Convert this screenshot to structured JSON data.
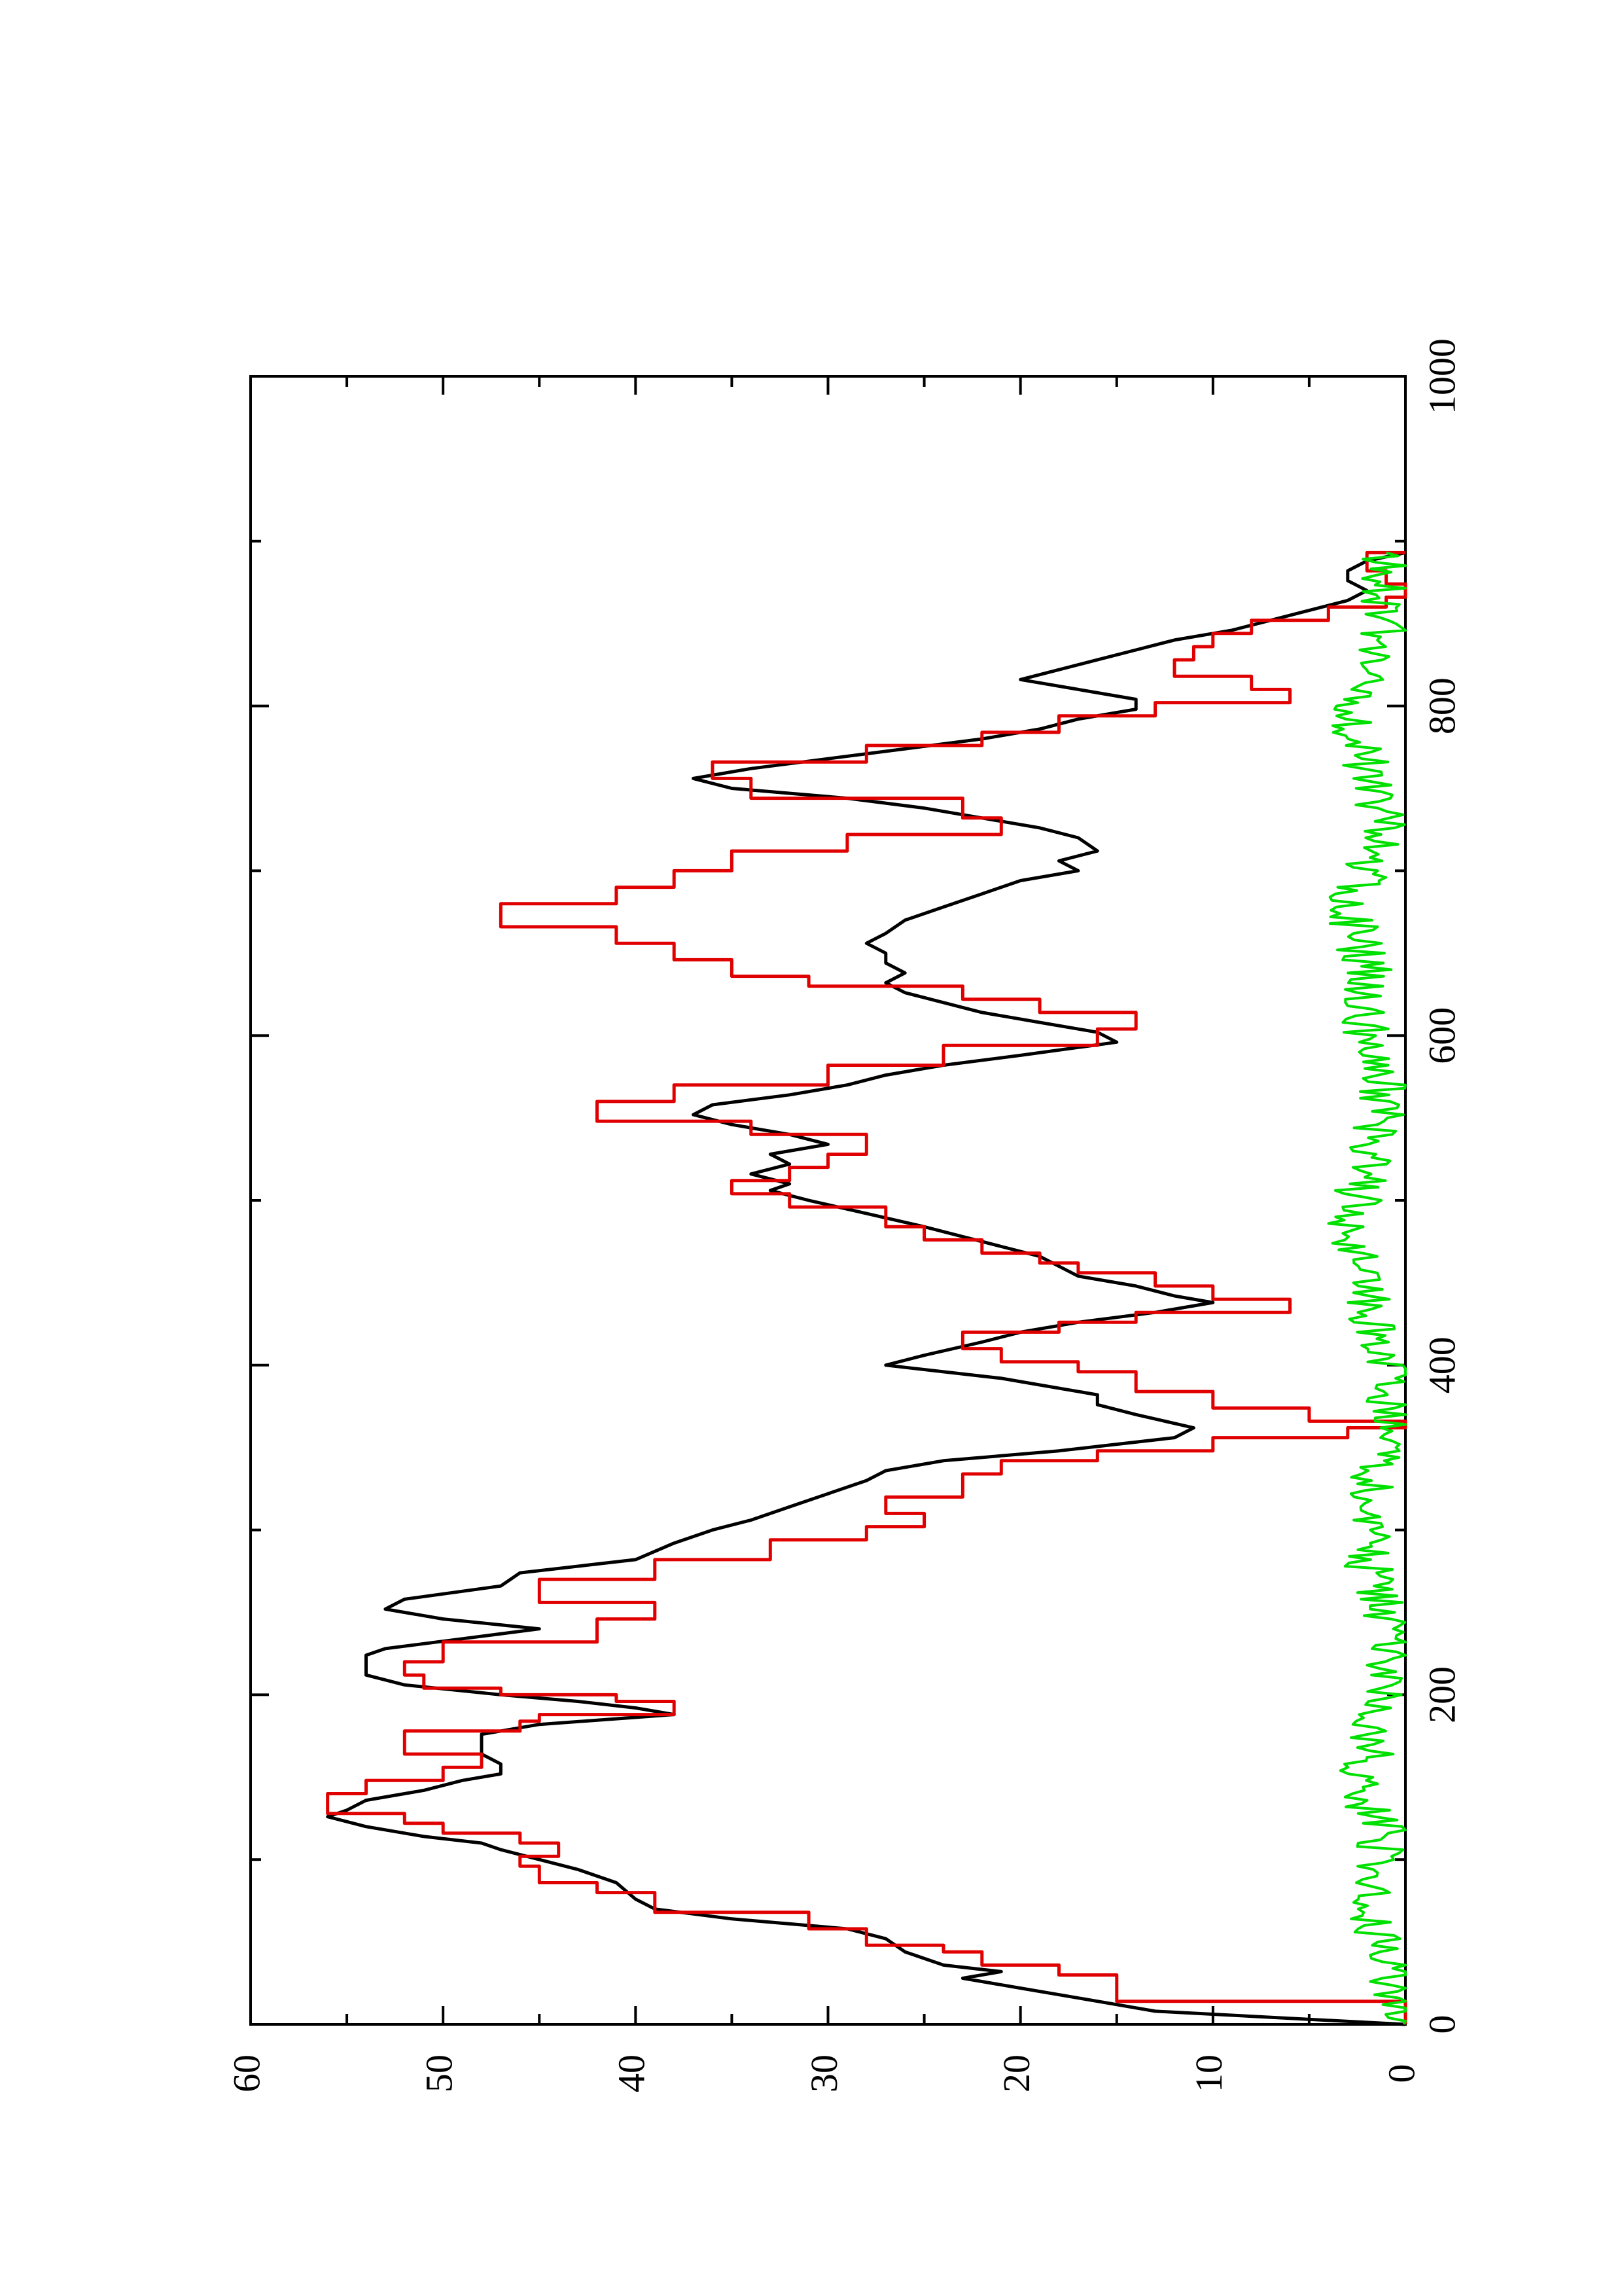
{
  "chart_data": {
    "type": "line",
    "title": "",
    "xlabel": "",
    "ylabel": "",
    "orientation": "rotated 90 degrees counter-clockwise (page portrait)",
    "xlim": [
      0,
      1000
    ],
    "ylim": [
      0,
      60
    ],
    "x_ticks": [
      0,
      200,
      400,
      600,
      800,
      1000
    ],
    "y_ticks": [
      0,
      10,
      20,
      30,
      40,
      50,
      60
    ],
    "x_tick_labels": [
      "0",
      "200",
      "400",
      "600",
      "800",
      "1000"
    ],
    "y_tick_labels": [
      "0",
      "10",
      "20",
      "30",
      "40",
      "50",
      "60"
    ],
    "grid": false,
    "legend": "none",
    "colors": {
      "black": "#000000",
      "red": "#e00000",
      "green": "#00e000"
    },
    "series": [
      {
        "color": "black",
        "style": "line",
        "points": [
          [
            0,
            0
          ],
          [
            8,
            13
          ],
          [
            14,
            16
          ],
          [
            22,
            20
          ],
          [
            28,
            23
          ],
          [
            32,
            21
          ],
          [
            36,
            24
          ],
          [
            44,
            26
          ],
          [
            52,
            27
          ],
          [
            58,
            29
          ],
          [
            64,
            35
          ],
          [
            70,
            39
          ],
          [
            76,
            40
          ],
          [
            86,
            41
          ],
          [
            94,
            43
          ],
          [
            100,
            45
          ],
          [
            106,
            47
          ],
          [
            110,
            48
          ],
          [
            114,
            51
          ],
          [
            120,
            54
          ],
          [
            126,
            56
          ],
          [
            130,
            55
          ],
          [
            136,
            54
          ],
          [
            142,
            51
          ],
          [
            148,
            49
          ],
          [
            152,
            47
          ],
          [
            158,
            47
          ],
          [
            164,
            48
          ],
          [
            170,
            48
          ],
          [
            176,
            48
          ],
          [
            182,
            45
          ],
          [
            188,
            38
          ],
          [
            192,
            40
          ],
          [
            196,
            43
          ],
          [
            200,
            47
          ],
          [
            206,
            52
          ],
          [
            212,
            54
          ],
          [
            220,
            54
          ],
          [
            224,
            54
          ],
          [
            228,
            53
          ],
          [
            234,
            49
          ],
          [
            240,
            45
          ],
          [
            246,
            50
          ],
          [
            252,
            53
          ],
          [
            258,
            52
          ],
          [
            266,
            47
          ],
          [
            274,
            46
          ],
          [
            282,
            40
          ],
          [
            292,
            38
          ],
          [
            300,
            36
          ],
          [
            306,
            34
          ],
          [
            314,
            32
          ],
          [
            322,
            30
          ],
          [
            330,
            28
          ],
          [
            336,
            27
          ],
          [
            342,
            24
          ],
          [
            348,
            18
          ],
          [
            356,
            12
          ],
          [
            362,
            11
          ],
          [
            370,
            14
          ],
          [
            376,
            16
          ],
          [
            382,
            16
          ],
          [
            388,
            19
          ],
          [
            392,
            21
          ],
          [
            396,
            24
          ],
          [
            400,
            27
          ],
          [
            406,
            25
          ],
          [
            414,
            22
          ],
          [
            420,
            20
          ],
          [
            426,
            17
          ],
          [
            432,
            13
          ],
          [
            438,
            10
          ],
          [
            442,
            12
          ],
          [
            448,
            14
          ],
          [
            454,
            17
          ],
          [
            460,
            18
          ],
          [
            466,
            19
          ],
          [
            472,
            21
          ],
          [
            478,
            23
          ],
          [
            484,
            25
          ],
          [
            492,
            28
          ],
          [
            500,
            31
          ],
          [
            506,
            33
          ],
          [
            510,
            32
          ],
          [
            516,
            34
          ],
          [
            522,
            32
          ],
          [
            528,
            33
          ],
          [
            534,
            30
          ],
          [
            540,
            32
          ],
          [
            546,
            35
          ],
          [
            552,
            37
          ],
          [
            558,
            36
          ],
          [
            564,
            32
          ],
          [
            570,
            29
          ],
          [
            576,
            27
          ],
          [
            582,
            24
          ],
          [
            588,
            20
          ],
          [
            596,
            15
          ],
          [
            602,
            16
          ],
          [
            608,
            19
          ],
          [
            614,
            22
          ],
          [
            620,
            24
          ],
          [
            626,
            26
          ],
          [
            632,
            27
          ],
          [
            638,
            26
          ],
          [
            644,
            27
          ],
          [
            650,
            27
          ],
          [
            656,
            28
          ],
          [
            662,
            27
          ],
          [
            670,
            26
          ],
          [
            678,
            24
          ],
          [
            686,
            22
          ],
          [
            694,
            20
          ],
          [
            700,
            17
          ],
          [
            706,
            18
          ],
          [
            712,
            16
          ],
          [
            720,
            17
          ],
          [
            726,
            19
          ],
          [
            732,
            22
          ],
          [
            738,
            25
          ],
          [
            744,
            29
          ],
          [
            750,
            35
          ],
          [
            756,
            37
          ],
          [
            762,
            34
          ],
          [
            768,
            30
          ],
          [
            774,
            26
          ],
          [
            780,
            22
          ],
          [
            786,
            19
          ],
          [
            792,
            17
          ],
          [
            798,
            14
          ],
          [
            804,
            14
          ],
          [
            810,
            17
          ],
          [
            816,
            20
          ],
          [
            822,
            18
          ],
          [
            828,
            16
          ],
          [
            834,
            14
          ],
          [
            840,
            12
          ],
          [
            846,
            9
          ],
          [
            852,
            7
          ],
          [
            858,
            5
          ],
          [
            864,
            3
          ],
          [
            870,
            2
          ],
          [
            876,
            3
          ],
          [
            882,
            3
          ],
          [
            888,
            2
          ],
          [
            893,
            0
          ]
        ]
      },
      {
        "color": "red",
        "style": "step",
        "points": [
          [
            0,
            0
          ],
          [
            14,
            15
          ],
          [
            30,
            18
          ],
          [
            36,
            22
          ],
          [
            44,
            24
          ],
          [
            48,
            28
          ],
          [
            58,
            31
          ],
          [
            68,
            39
          ],
          [
            80,
            42
          ],
          [
            86,
            45
          ],
          [
            96,
            46
          ],
          [
            102,
            44
          ],
          [
            110,
            46
          ],
          [
            116,
            50
          ],
          [
            122,
            52
          ],
          [
            128,
            56
          ],
          [
            140,
            54
          ],
          [
            148,
            50
          ],
          [
            156,
            48
          ],
          [
            164,
            52
          ],
          [
            178,
            46
          ],
          [
            184,
            45
          ],
          [
            188,
            38
          ],
          [
            196,
            41
          ],
          [
            200,
            47
          ],
          [
            204,
            51
          ],
          [
            212,
            52
          ],
          [
            220,
            50
          ],
          [
            232,
            42
          ],
          [
            246,
            39
          ],
          [
            256,
            45
          ],
          [
            270,
            39
          ],
          [
            282,
            33
          ],
          [
            294,
            28
          ],
          [
            302,
            25
          ],
          [
            310,
            27
          ],
          [
            320,
            23
          ],
          [
            334,
            21
          ],
          [
            342,
            16
          ],
          [
            348,
            10
          ],
          [
            356,
            3
          ],
          [
            362,
            0
          ],
          [
            366,
            5
          ],
          [
            374,
            10
          ],
          [
            384,
            14
          ],
          [
            396,
            17
          ],
          [
            402,
            21
          ],
          [
            410,
            23
          ],
          [
            420,
            18
          ],
          [
            426,
            14
          ],
          [
            432,
            6
          ],
          [
            440,
            10
          ],
          [
            448,
            13
          ],
          [
            456,
            17
          ],
          [
            462,
            19
          ],
          [
            468,
            22
          ],
          [
            476,
            25
          ],
          [
            484,
            27
          ],
          [
            496,
            32
          ],
          [
            504,
            35
          ],
          [
            512,
            32
          ],
          [
            520,
            30
          ],
          [
            528,
            28
          ],
          [
            540,
            34
          ],
          [
            548,
            42
          ],
          [
            560,
            38
          ],
          [
            570,
            30
          ],
          [
            582,
            24
          ],
          [
            594,
            16
          ],
          [
            604,
            14
          ],
          [
            614,
            19
          ],
          [
            622,
            23
          ],
          [
            630,
            31
          ],
          [
            636,
            35
          ],
          [
            646,
            38
          ],
          [
            656,
            41
          ],
          [
            666,
            47
          ],
          [
            680,
            41
          ],
          [
            690,
            38
          ],
          [
            700,
            35
          ],
          [
            712,
            29
          ],
          [
            722,
            21
          ],
          [
            732,
            23
          ],
          [
            744,
            34
          ],
          [
            756,
            36
          ],
          [
            766,
            28
          ],
          [
            776,
            22
          ],
          [
            784,
            18
          ],
          [
            794,
            13
          ],
          [
            802,
            6
          ],
          [
            810,
            8
          ],
          [
            818,
            12
          ],
          [
            828,
            11
          ],
          [
            836,
            10
          ],
          [
            844,
            8
          ],
          [
            852,
            4
          ],
          [
            860,
            1
          ],
          [
            866,
            0
          ],
          [
            874,
            1
          ],
          [
            882,
            2
          ],
          [
            893,
            0
          ]
        ]
      },
      {
        "color": "green",
        "style": "line",
        "noise": "rapid fluctuation between 0 and about 3 across the whole range",
        "points": [
          [
            0,
            0
          ],
          [
            40,
            1
          ],
          [
            80,
            2
          ],
          [
            120,
            1
          ],
          [
            140,
            3
          ],
          [
            160,
            2
          ],
          [
            200,
            1
          ],
          [
            240,
            1
          ],
          [
            280,
            2
          ],
          [
            320,
            2
          ],
          [
            360,
            1
          ],
          [
            400,
            1
          ],
          [
            440,
            2
          ],
          [
            480,
            3
          ],
          [
            520,
            2
          ],
          [
            560,
            1
          ],
          [
            600,
            2
          ],
          [
            640,
            2
          ],
          [
            680,
            3
          ],
          [
            720,
            1
          ],
          [
            760,
            2
          ],
          [
            800,
            3
          ],
          [
            840,
            1
          ],
          [
            893,
            1
          ]
        ]
      }
    ]
  }
}
